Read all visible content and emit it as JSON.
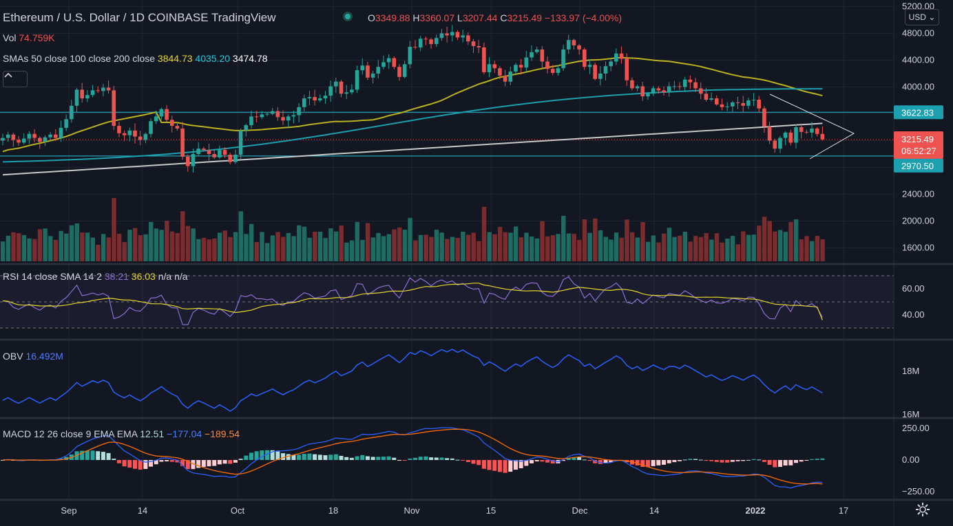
{
  "symbol": {
    "name": "Ethereum / U.S. Dollar",
    "interval": "1D",
    "exchange": "COINBASE",
    "platform": "TradingView"
  },
  "ohlc": {
    "o_label": "O",
    "o": "3349.88",
    "h_label": "H",
    "h": "3360.07",
    "l_label": "L",
    "l": "3207.44",
    "c_label": "C",
    "c": "3215.49",
    "change": "−133.97 (−4.00%)"
  },
  "indicators": {
    "vol": {
      "label": "Vol",
      "value": "74.759K"
    },
    "sma": {
      "label": "SMAs 50 close 100 close 200 close",
      "v50": "3844.73",
      "v100": "4035.20",
      "v200": "3474.78"
    },
    "rsi": {
      "label": "RSI 14 close SMA 14 2",
      "v1": "38.21",
      "v2": "36.03",
      "v3": "n/a",
      "v4": "n/a"
    },
    "obv": {
      "label": "OBV",
      "value": "16.492M"
    },
    "macd": {
      "label": "MACD 12 26 close 9 EMA EMA",
      "hist": "12.51",
      "macd": "−177.04",
      "signal": "−189.54"
    }
  },
  "currency_button": "USD",
  "collapse_icon": "chevron-up-icon",
  "settings_icon": "gear-icon",
  "price_tags": {
    "resistance": "3622.83",
    "last": "3215.49",
    "countdown": "06:52:27",
    "support": "2970.50"
  },
  "colors": {
    "bg": "#131722",
    "up": "#26a69a",
    "down": "#ef5350",
    "vol_up": "#1e6b62",
    "vol_down": "#7a2c2e",
    "sma50": "#bcb21f",
    "sma100": "#1ca0b0",
    "sma200": "#c9c9c9",
    "rsi": "#7e57c2",
    "rsi_sma": "#e6d72a",
    "obv": "#2962ff",
    "macd": "#2962ff",
    "signal": "#ff6d00",
    "hline": "#26c6da"
  },
  "chart_data": [
    {
      "type": "candlestick",
      "title": "Ethereum / U.S. Dollar, 1D, COINBASE",
      "x_ticks": [
        "Sep",
        "14",
        "Oct",
        "18",
        "Nov",
        "15",
        "Dec",
        "14",
        "2022",
        "17"
      ],
      "y_ticks": [
        "5200.00",
        "4800.00",
        "4400.00",
        "4000.00",
        "3600.00",
        "3200.00",
        "2800.00",
        "2400.00",
        "2000.00",
        "1600.00"
      ],
      "ylim": [
        1450,
        5250
      ],
      "close_series_approx": [
        3240,
        3290,
        3210,
        3170,
        3230,
        3300,
        3240,
        3180,
        3250,
        3290,
        3240,
        3390,
        3520,
        3720,
        3960,
        3830,
        3880,
        3950,
        3940,
        3990,
        3950,
        3420,
        3310,
        3280,
        3350,
        3260,
        3210,
        3300,
        3490,
        3560,
        3670,
        3510,
        3420,
        3380,
        2960,
        2820,
        3000,
        3080,
        3060,
        3000,
        2950,
        3060,
        2990,
        2880,
        2990,
        3350,
        3430,
        3560,
        3550,
        3590,
        3600,
        3640,
        3550,
        3500,
        3560,
        3580,
        3700,
        3830,
        3850,
        3800,
        3830,
        3870,
        4010,
        4080,
        3900,
        3920,
        3960,
        4250,
        4320,
        4140,
        4200,
        4300,
        4370,
        4430,
        4300,
        4150,
        4340,
        4600,
        4590,
        4720,
        4710,
        4640,
        4730,
        4800,
        4770,
        4820,
        4740,
        4770,
        4680,
        4610,
        4590,
        4220,
        4340,
        4280,
        4170,
        4080,
        4230,
        4330,
        4290,
        4440,
        4520,
        4560,
        4380,
        4270,
        4210,
        4280,
        4560,
        4700,
        4620,
        4560,
        4300,
        4330,
        4120,
        4200,
        4310,
        4380,
        4500,
        4420,
        4100,
        3980,
        4010,
        3860,
        3900,
        3980,
        3950,
        3920,
        4010,
        4010,
        4000,
        4110,
        4070,
        3980,
        3900,
        3810,
        3830,
        3740,
        3700,
        3710,
        3770,
        3760,
        3720,
        3800,
        3810,
        3680,
        3410,
        3200,
        3080,
        3240,
        3320,
        3170,
        3400,
        3330,
        3320,
        3380,
        3300,
        3220
      ],
      "sma50_end": 3844.73,
      "sma100_end": 4035.2,
      "sma200_end": 3474.78,
      "horizontal_levels": [
        3622.83,
        2970.5
      ],
      "last_price": 3215.49
    },
    {
      "type": "bar",
      "title": "Vol",
      "last_value": "74.759K"
    },
    {
      "type": "line",
      "title": "RSI 14 close SMA 14 2",
      "y_ticks": [
        "60.00",
        "40.00"
      ],
      "ylim": [
        25,
        75
      ],
      "bands": [
        70,
        50,
        30
      ],
      "rsi_last": 38.21,
      "rsi_sma_last": 36.03
    },
    {
      "type": "line",
      "title": "OBV",
      "y_ticks": [
        "18M",
        "16M"
      ],
      "last_value": "16.492M"
    },
    {
      "type": "line",
      "title": "MACD 12 26 close 9 EMA EMA",
      "y_ticks": [
        "250.00",
        "0.00",
        "−250.00"
      ],
      "ylim": [
        -290,
        290
      ],
      "hist_last": 12.51,
      "macd_last": -177.04,
      "signal_last": -189.54
    }
  ]
}
